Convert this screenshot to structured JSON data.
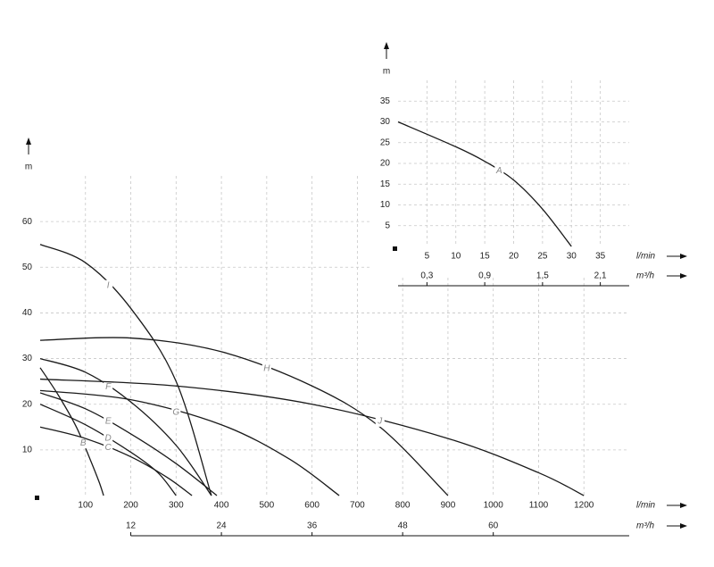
{
  "chart_data": [
    {
      "type": "line",
      "x_label": "l/min",
      "x2_label": "m³/h",
      "y_label": "m",
      "xlim": [
        0,
        1300
      ],
      "xticks": [
        100,
        200,
        300,
        400,
        500,
        600,
        700,
        800,
        900,
        1000,
        1100,
        1200
      ],
      "x2lim": [
        0,
        78
      ],
      "x2ticks": [
        12,
        24,
        36,
        48,
        60
      ],
      "ylim": [
        0,
        70
      ],
      "yticks": [
        10,
        20,
        30,
        40,
        50,
        60
      ],
      "grid": true,
      "series": [
        {
          "name": "B",
          "color": "#1a1a1a",
          "x": [
            0,
            40,
            80,
            110,
            130,
            140
          ],
          "values": [
            28,
            22,
            15,
            8,
            3,
            0
          ]
        },
        {
          "name": "C",
          "color": "#1a1a1a",
          "x": [
            0,
            100,
            200,
            280,
            335
          ],
          "values": [
            15,
            12.5,
            8.5,
            4,
            0
          ]
        },
        {
          "name": "D",
          "color": "#1a1a1a",
          "x": [
            0,
            100,
            200,
            260,
            300
          ],
          "values": [
            20,
            15.5,
            9.5,
            5,
            0
          ]
        },
        {
          "name": "E",
          "color": "#1a1a1a",
          "x": [
            0,
            100,
            200,
            300,
            390
          ],
          "values": [
            22.5,
            19,
            13.5,
            7,
            0
          ]
        },
        {
          "name": "F",
          "color": "#1a1a1a",
          "x": [
            0,
            100,
            200,
            300,
            378
          ],
          "values": [
            30,
            27,
            20.5,
            11,
            0
          ]
        },
        {
          "name": "G",
          "color": "#1a1a1a",
          "x": [
            0,
            200,
            400,
            550,
            660
          ],
          "values": [
            23,
            21,
            15.5,
            8,
            0
          ]
        },
        {
          "name": "H",
          "color": "#1a1a1a",
          "x": [
            0,
            200,
            400,
            600,
            750,
            900
          ],
          "values": [
            34,
            34.5,
            31.5,
            24,
            15,
            0
          ]
        },
        {
          "name": "I",
          "color": "#1a1a1a",
          "x": [
            0,
            100,
            200,
            300,
            378
          ],
          "values": [
            55,
            51,
            41,
            25,
            0
          ]
        },
        {
          "name": "J",
          "color": "#1a1a1a",
          "x": [
            0,
            300,
            600,
            900,
            1100,
            1200
          ],
          "values": [
            25.5,
            24,
            20,
            12.5,
            5,
            0
          ]
        }
      ]
    },
    {
      "type": "line",
      "x_label": "l/min",
      "x2_label": "m³/h",
      "y_label": "m",
      "xlim": [
        0,
        40
      ],
      "xticks": [
        5,
        10,
        15,
        20,
        25,
        30,
        35
      ],
      "x2lim": [
        0,
        2.4
      ],
      "x2ticks": [
        {
          "value": 0.3,
          "label": "0,3"
        },
        {
          "value": 0.9,
          "label": "0,9"
        },
        {
          "value": 1.5,
          "label": "1,5"
        },
        {
          "value": 2.1,
          "label": "2,1"
        }
      ],
      "ylim": [
        0,
        40
      ],
      "yticks": [
        5,
        10,
        15,
        20,
        25,
        30,
        35
      ],
      "grid": true,
      "series": [
        {
          "name": "A",
          "color": "#1a1a1a",
          "x": [
            0,
            10,
            15,
            20,
            25,
            30
          ],
          "values": [
            30,
            24,
            20.5,
            16,
            9,
            0
          ]
        }
      ]
    }
  ]
}
